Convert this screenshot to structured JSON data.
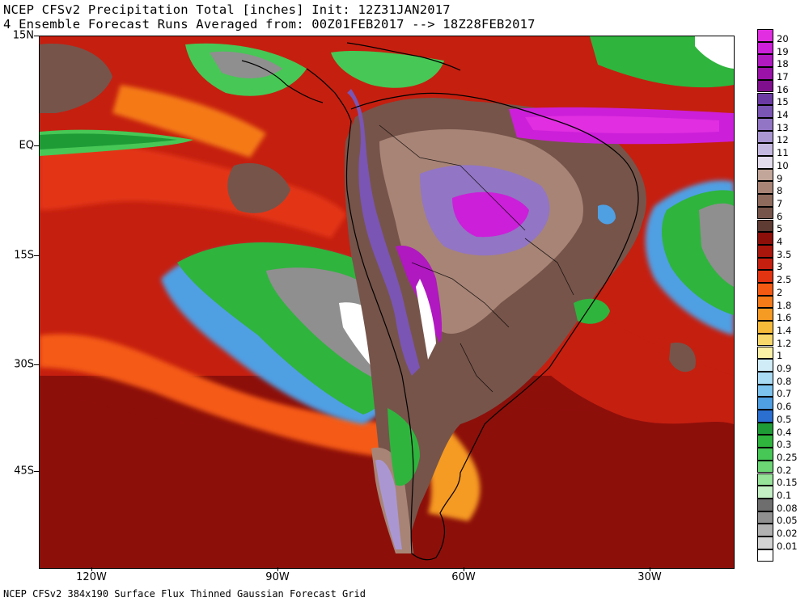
{
  "title": {
    "line1": "NCEP CFSv2 Precipitation Total [inches] Init: 12Z31JAN2017",
    "line2": "4 Ensemble Forecast Runs Averaged from: 00Z01FEB2017 --> 18Z28FEB2017"
  },
  "footer": "NCEP CFSv2 384x190 Surface Flux Thinned Gaussian Forecast Grid",
  "latitude_labels": [
    "15N",
    "EQ",
    "15S",
    "30S",
    "45S"
  ],
  "longitude_labels": [
    "120W",
    "90W",
    "60W",
    "30W"
  ],
  "legend": {
    "levels": [
      "20",
      "19",
      "18",
      "17",
      "16",
      "15",
      "14",
      "13",
      "12",
      "11",
      "10",
      "9",
      "8",
      "7",
      "6",
      "5",
      "4",
      "3.5",
      "3",
      "2.5",
      "2",
      "1.8",
      "1.6",
      "1.4",
      "1.2",
      "1",
      "0.9",
      "0.8",
      "0.7",
      "0.6",
      "0.5",
      "0.4",
      "0.3",
      "0.25",
      "0.2",
      "0.15",
      "0.1",
      "0.08",
      "0.05",
      "0.02",
      "0.01"
    ],
    "colors": [
      "#e02ee0",
      "#cc1fd9",
      "#b018c0",
      "#9a12a8",
      "#7f0f8c",
      "#6b3aa3",
      "#7a55b3",
      "#9275c4",
      "#aa97d2",
      "#c5b8e0",
      "#e3dcec",
      "#c2a69a",
      "#a88476",
      "#8e6a5c",
      "#76544a",
      "#5e3b33",
      "#8d0f0a",
      "#a8160c",
      "#c51f10",
      "#e33412",
      "#f55a13",
      "#f57a18",
      "#f59a22",
      "#f7bb3a",
      "#f8d86a",
      "#faf0a6",
      "#cfecf7",
      "#a9dbf5",
      "#7cc3ef",
      "#4f9fe3",
      "#2b6fd0",
      "#1f9b36",
      "#2fb43e",
      "#47c755",
      "#6bd673",
      "#97e39a",
      "#c4efc4",
      "#6e6e6e",
      "#8f8f8f",
      "#b1b1b1",
      "#d3d3d3",
      "#ffffff"
    ]
  },
  "map": {
    "region": "South America and adjacent oceans"
  }
}
